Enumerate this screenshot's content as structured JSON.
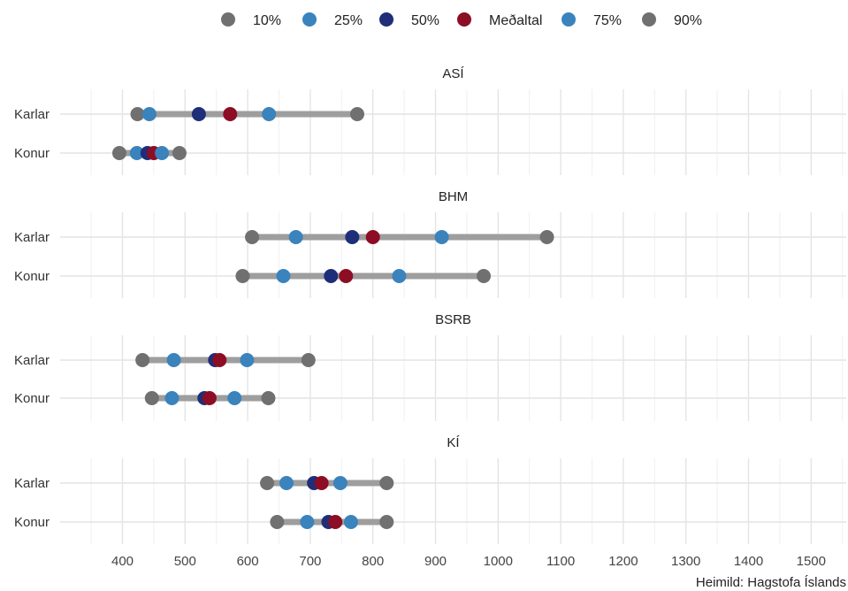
{
  "chart_data": {
    "type": "dot-range",
    "legend": {
      "placement": "top",
      "entries": [
        {
          "key": "p10",
          "label": "10%",
          "color": "#707070"
        },
        {
          "key": "p25",
          "label": "25%",
          "color": "#3a83bd"
        },
        {
          "key": "p50",
          "label": "50%",
          "color": "#1f2e78"
        },
        {
          "key": "mean",
          "label": "Meðaltal",
          "color": "#8d0d24"
        },
        {
          "key": "p75",
          "label": "75%",
          "color": "#3a83bd"
        },
        {
          "key": "p90",
          "label": "90%",
          "color": "#707070"
        }
      ]
    },
    "range_line_color": "#9e9e9e",
    "xlim": [
      300,
      1550
    ],
    "x_ticks": [
      400,
      500,
      600,
      700,
      800,
      900,
      1000,
      1100,
      1200,
      1300,
      1400,
      1500
    ],
    "grid": true,
    "facets": [
      {
        "title": "ASÍ",
        "rows": [
          {
            "label": "Karlar",
            "p10": 424,
            "p25": 443,
            "p50": 522,
            "mean": 572,
            "p75": 634,
            "p90": 775
          },
          {
            "label": "Konur",
            "p10": 395,
            "p25": 423,
            "p50": 440,
            "mean": 450,
            "p75": 463,
            "p90": 491
          }
        ]
      },
      {
        "title": "BHM",
        "rows": [
          {
            "label": "Karlar",
            "p10": 607,
            "p25": 677,
            "p50": 767,
            "mean": 800,
            "p75": 910,
            "p90": 1078
          },
          {
            "label": "Konur",
            "p10": 592,
            "p25": 657,
            "p50": 733,
            "mean": 757,
            "p75": 842,
            "p90": 977
          }
        ]
      },
      {
        "title": "BSRB",
        "rows": [
          {
            "label": "Karlar",
            "p10": 432,
            "p25": 482,
            "p50": 548,
            "mean": 555,
            "p75": 599,
            "p90": 697
          },
          {
            "label": "Konur",
            "p10": 447,
            "p25": 479,
            "p50": 531,
            "mean": 539,
            "p75": 579,
            "p90": 633
          }
        ]
      },
      {
        "title": "KÍ",
        "rows": [
          {
            "label": "Karlar",
            "p10": 631,
            "p25": 662,
            "p50": 706,
            "mean": 718,
            "p75": 748,
            "p90": 822
          },
          {
            "label": "Konur",
            "p10": 647,
            "p25": 695,
            "p50": 729,
            "mean": 740,
            "p75": 765,
            "p90": 822
          }
        ]
      }
    ],
    "caption": "Heimild: Hagstofa Íslands"
  }
}
